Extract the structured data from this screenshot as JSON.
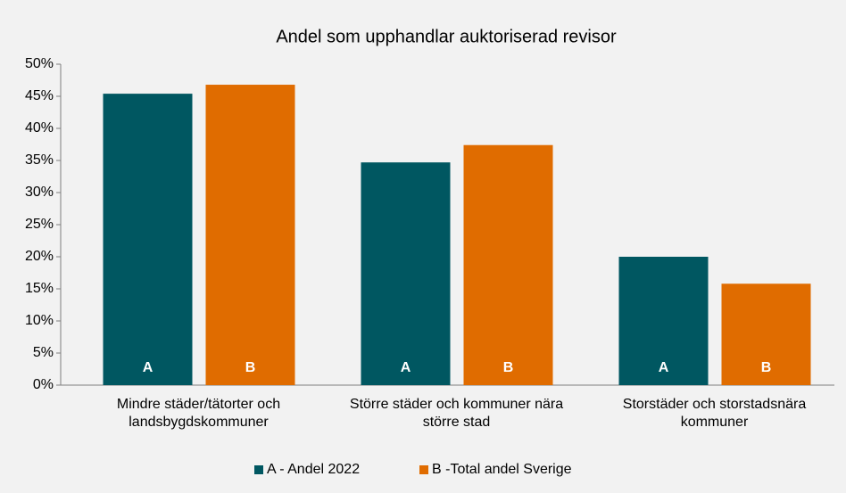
{
  "chart_data": {
    "type": "bar",
    "title": "Andel som upphandlar auktoriserad revisor",
    "categories": [
      "Mindre städer/tätorter och landsbygdskommuner",
      "Större städer och kommuner nära större stad",
      "Storstäder och storstadsnära kommuner"
    ],
    "series": [
      {
        "name": "A - Andel 2022",
        "color": "#005761",
        "bar_label": "A",
        "values": [
          45.4,
          34.7,
          20
        ]
      },
      {
        "name": "B -Total andel Sverige",
        "color": "#e06c00",
        "bar_label": "B",
        "values": [
          46.8,
          37.4,
          15.8
        ]
      }
    ],
    "ylim": [
      0,
      50
    ],
    "yticks": [
      {
        "value": 0,
        "label": "0%"
      },
      {
        "value": 5,
        "label": "5%"
      },
      {
        "value": 10,
        "label": "10%"
      },
      {
        "value": 15,
        "label": "15%"
      },
      {
        "value": 20,
        "label": "20%"
      },
      {
        "value": 25,
        "label": "25%"
      },
      {
        "value": 30,
        "label": "30%"
      },
      {
        "value": 35,
        "label": "35%"
      },
      {
        "value": 40,
        "label": "40%"
      },
      {
        "value": 45,
        "label": "45%"
      },
      {
        "value": 50,
        "label": "50%"
      }
    ],
    "grid": false,
    "legend": "bottom"
  }
}
